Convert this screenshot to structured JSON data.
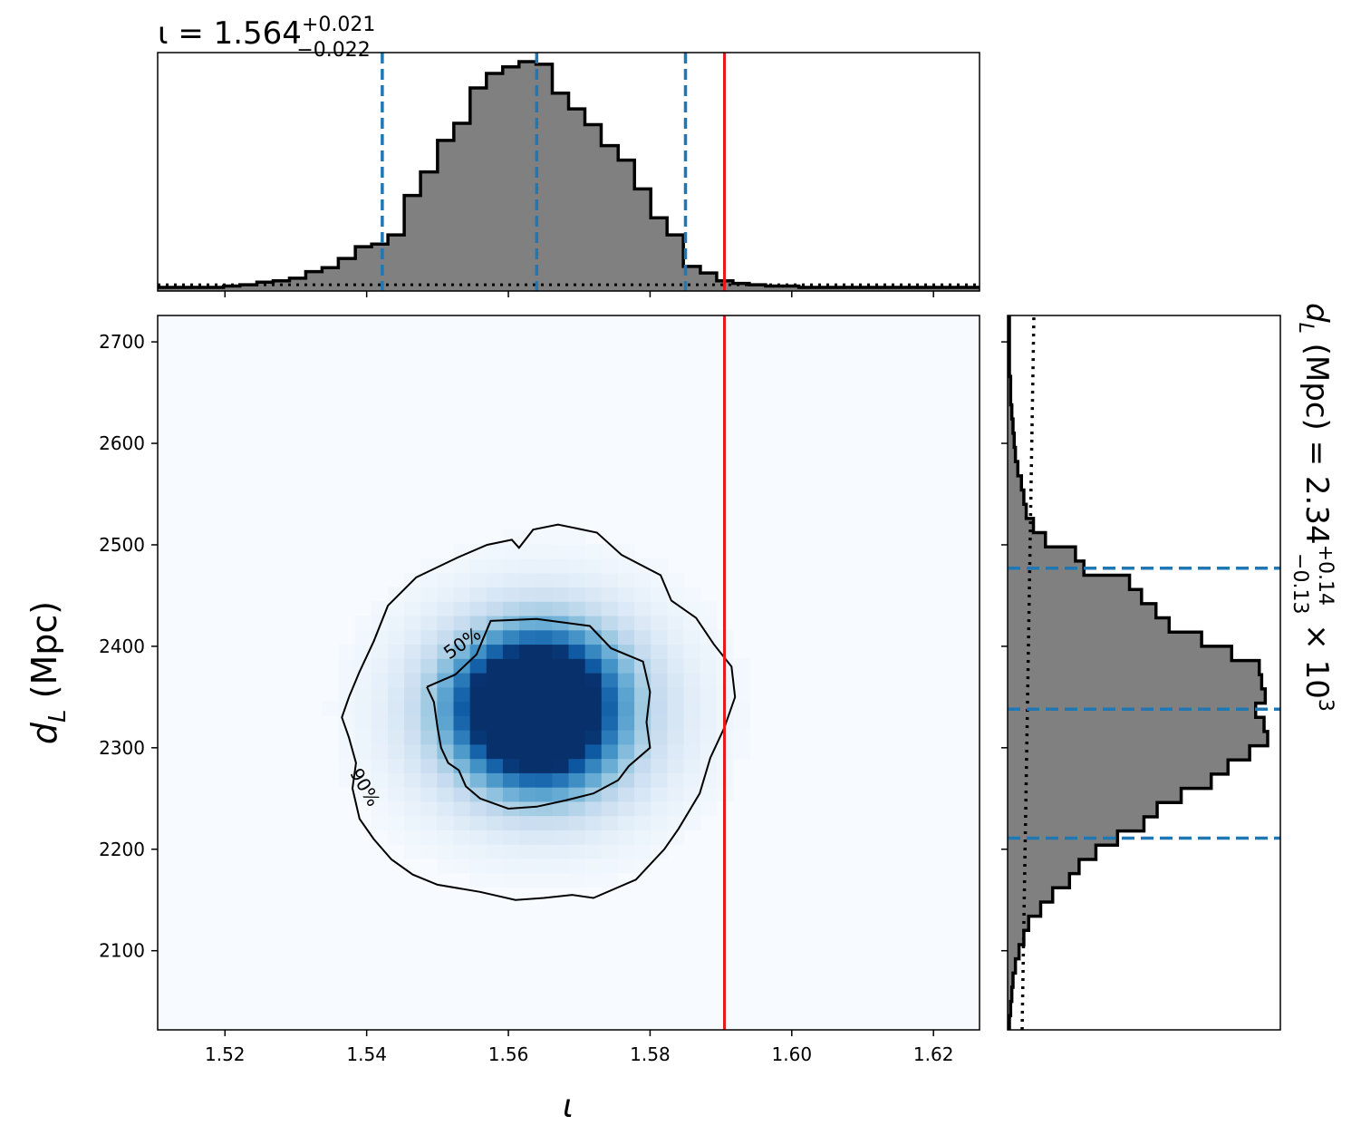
{
  "chart_data": [
    {
      "panel": "joint",
      "type": "heatmap",
      "xlabel": "ι",
      "ylabel": "d",
      "ylabel_sub": "L",
      "ylabel_unit": " (Mpc)",
      "xlim": [
        1.5105,
        1.6265
      ],
      "ylim": [
        2022,
        2726
      ],
      "x_ticks": [
        "1.52",
        "1.54",
        "1.56",
        "1.58",
        "1.60",
        "1.62"
      ],
      "y_ticks": [
        "2100",
        "2200",
        "2300",
        "2400",
        "2500",
        "2600",
        "2700"
      ],
      "colormap": "Blues",
      "density_peaks": [
        {
          "x": 1.5605,
          "y": 2345,
          "weight": 0.9
        },
        {
          "x": 1.566,
          "y": 2365,
          "weight": 0.85
        },
        {
          "x": 1.565,
          "y": 2310,
          "weight": 0.9
        }
      ],
      "contours": [
        {
          "label": "50%",
          "points": [
            [
              1.5485,
              2360
            ],
            [
              1.5525,
              2372
            ],
            [
              1.5555,
              2392
            ],
            [
              1.5575,
              2425
            ],
            [
              1.564,
              2427
            ],
            [
              1.5715,
              2420
            ],
            [
              1.5745,
              2398
            ],
            [
              1.579,
              2385
            ],
            [
              1.58,
              2355
            ],
            [
              1.5795,
              2325
            ],
            [
              1.58,
              2300
            ],
            [
              1.577,
              2282
            ],
            [
              1.5755,
              2268
            ],
            [
              1.572,
              2255
            ],
            [
              1.568,
              2248
            ],
            [
              1.564,
              2242
            ],
            [
              1.56,
              2240
            ],
            [
              1.556,
              2250
            ],
            [
              1.554,
              2262
            ],
            [
              1.553,
              2278
            ],
            [
              1.5515,
              2285
            ],
            [
              1.5505,
              2300
            ],
            [
              1.55,
              2320
            ],
            [
              1.5495,
              2345
            ],
            [
              1.5485,
              2360
            ]
          ]
        },
        {
          "label": "90%",
          "points": [
            [
              1.5375,
              2350
            ],
            [
              1.539,
              2375
            ],
            [
              1.541,
              2405
            ],
            [
              1.543,
              2440
            ],
            [
              1.547,
              2468
            ],
            [
              1.553,
              2488
            ],
            [
              1.557,
              2500
            ],
            [
              1.5605,
              2505
            ],
            [
              1.5615,
              2497
            ],
            [
              1.5635,
              2515
            ],
            [
              1.567,
              2520
            ],
            [
              1.5725,
              2512
            ],
            [
              1.576,
              2490
            ],
            [
              1.5815,
              2470
            ],
            [
              1.583,
              2445
            ],
            [
              1.5865,
              2428
            ],
            [
              1.589,
              2402
            ],
            [
              1.5915,
              2380
            ],
            [
              1.592,
              2350
            ],
            [
              1.5905,
              2320
            ],
            [
              1.5885,
              2290
            ],
            [
              1.587,
              2255
            ],
            [
              1.584,
              2220
            ],
            [
              1.582,
              2200
            ],
            [
              1.58,
              2185
            ],
            [
              1.578,
              2170
            ],
            [
              1.572,
              2152
            ],
            [
              1.569,
              2155
            ],
            [
              1.565,
              2152
            ],
            [
              1.561,
              2150
            ],
            [
              1.556,
              2158
            ],
            [
              1.55,
              2165
            ],
            [
              1.5465,
              2175
            ],
            [
              1.5435,
              2190
            ],
            [
              1.541,
              2210
            ],
            [
              1.539,
              2230
            ],
            [
              1.538,
              2260
            ],
            [
              1.5385,
              2285
            ],
            [
              1.5375,
              2310
            ],
            [
              1.5365,
              2330
            ],
            [
              1.5375,
              2350
            ]
          ]
        }
      ],
      "truth_line": {
        "x": 1.5905,
        "color": "#e41a1c"
      }
    },
    {
      "panel": "top-marginal",
      "type": "bar",
      "title_main": "ι = 1.564",
      "title_sup": "+0.021",
      "title_sub": "−0.022",
      "bin_edges": [
        1.5105,
        1.5129,
        1.5152,
        1.5175,
        1.5198,
        1.5221,
        1.5245,
        1.5268,
        1.5291,
        1.5314,
        1.5337,
        1.536,
        1.5384,
        1.5407,
        1.543,
        1.5453,
        1.5476,
        1.55,
        1.5523,
        1.5546,
        1.5569,
        1.5592,
        1.5615,
        1.5639,
        1.5662,
        1.5685,
        1.5708,
        1.5731,
        1.5755,
        1.5778,
        1.5801,
        1.5824,
        1.5847,
        1.5871,
        1.5894,
        1.5917,
        1.594,
        1.5963,
        1.5987,
        1.601,
        1.6033,
        1.6056,
        1.6079,
        1.6102,
        1.6126,
        1.6149,
        1.6172,
        1.6195,
        1.6218,
        1.6241,
        1.6265
      ],
      "counts": [
        0,
        0,
        0,
        0,
        1,
        2,
        4,
        5,
        7,
        12,
        15,
        22,
        31,
        33,
        40,
        70,
        88,
        112,
        125,
        152,
        163,
        168,
        172,
        170,
        148,
        136,
        124,
        108,
        97,
        75,
        53,
        40,
        16,
        11,
        5,
        3,
        2,
        1,
        1,
        0,
        0,
        0,
        0,
        0,
        0,
        0,
        0,
        0,
        0,
        0
      ],
      "quantile_lines": [
        1.5422,
        1.564,
        1.585
      ],
      "prior_level": 2,
      "truth_line": {
        "x": 1.5905,
        "color": "#e41a1c"
      },
      "hist_color": "#808080",
      "quantile_color": "#1f77b4"
    },
    {
      "panel": "right-marginal",
      "type": "bar",
      "orientation": "horizontal",
      "title_main": "d",
      "title_subscript": "L",
      "title_rest": " (Mpc) = 2.34",
      "title_sup": "+0.14",
      "title_sub": "−0.13",
      "title_tail": " × 10",
      "title_exp": "3",
      "bin_edges": [
        2022,
        2036,
        2050,
        2064,
        2078,
        2092,
        2106,
        2120,
        2134,
        2148,
        2162,
        2176,
        2190,
        2204,
        2218,
        2232,
        2246,
        2260,
        2274,
        2288,
        2302,
        2316,
        2330,
        2344,
        2358,
        2372,
        2386,
        2400,
        2414,
        2428,
        2442,
        2456,
        2470,
        2484,
        2498,
        2512,
        2526,
        2540,
        2554,
        2568,
        2582,
        2596,
        2610,
        2624,
        2638,
        2652,
        2666,
        2680,
        2694,
        2708,
        2726
      ],
      "counts": [
        0,
        1,
        2,
        3,
        5,
        8,
        12,
        16,
        26,
        36,
        50,
        58,
        72,
        90,
        112,
        123,
        143,
        168,
        182,
        200,
        215,
        212,
        205,
        213,
        210,
        208,
        185,
        160,
        133,
        122,
        110,
        100,
        62,
        55,
        30,
        20,
        14,
        12,
        10,
        7,
        5,
        4,
        3,
        2,
        1,
        1,
        0,
        0,
        0,
        0
      ],
      "quantile_lines": [
        2211,
        2338,
        2477
      ],
      "prior_level": 8,
      "hist_color": "#808080",
      "quantile_color": "#1f77b4"
    }
  ]
}
